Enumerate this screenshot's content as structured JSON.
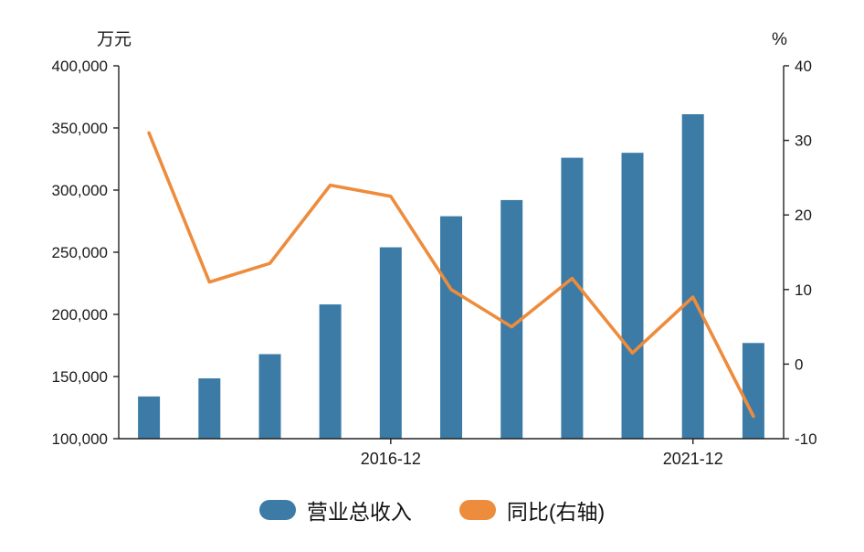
{
  "chart_data": {
    "type": "bar+line",
    "title": "",
    "grid": false,
    "legend_position": "bottom",
    "x_ticks": [
      {
        "index": 4,
        "label": "2016-12"
      },
      {
        "index": 9,
        "label": "2021-12"
      }
    ],
    "left_axis": {
      "unit": "万元",
      "min": 100000,
      "max": 400000,
      "ticks": [
        {
          "value": 100000,
          "label": "100,000"
        },
        {
          "value": 150000,
          "label": "150,000"
        },
        {
          "value": 200000,
          "label": "200,000"
        },
        {
          "value": 250000,
          "label": "250,000"
        },
        {
          "value": 300000,
          "label": "300,000"
        },
        {
          "value": 350000,
          "label": "350,000"
        },
        {
          "value": 400000,
          "label": "400,000"
        }
      ]
    },
    "right_axis": {
      "unit": "%",
      "min": -10,
      "max": 40,
      "ticks": [
        {
          "value": -10,
          "label": "-10"
        },
        {
          "value": 0,
          "label": "0"
        },
        {
          "value": 10,
          "label": "10"
        },
        {
          "value": 20,
          "label": "20"
        },
        {
          "value": 30,
          "label": "30"
        },
        {
          "value": 40,
          "label": "40"
        }
      ]
    },
    "series": [
      {
        "name": "营业总收入",
        "type": "bar",
        "axis": "left",
        "color": "#3b7ba6",
        "values": [
          134000,
          148500,
          168000,
          208000,
          254000,
          279000,
          292000,
          326000,
          330000,
          361000,
          177000
        ]
      },
      {
        "name": "同比(右轴)",
        "type": "line",
        "axis": "right",
        "color": "#ee8c3d",
        "values": [
          31,
          11,
          13.5,
          24,
          22.5,
          10,
          5,
          11.5,
          1.5,
          9,
          -7
        ]
      }
    ]
  }
}
